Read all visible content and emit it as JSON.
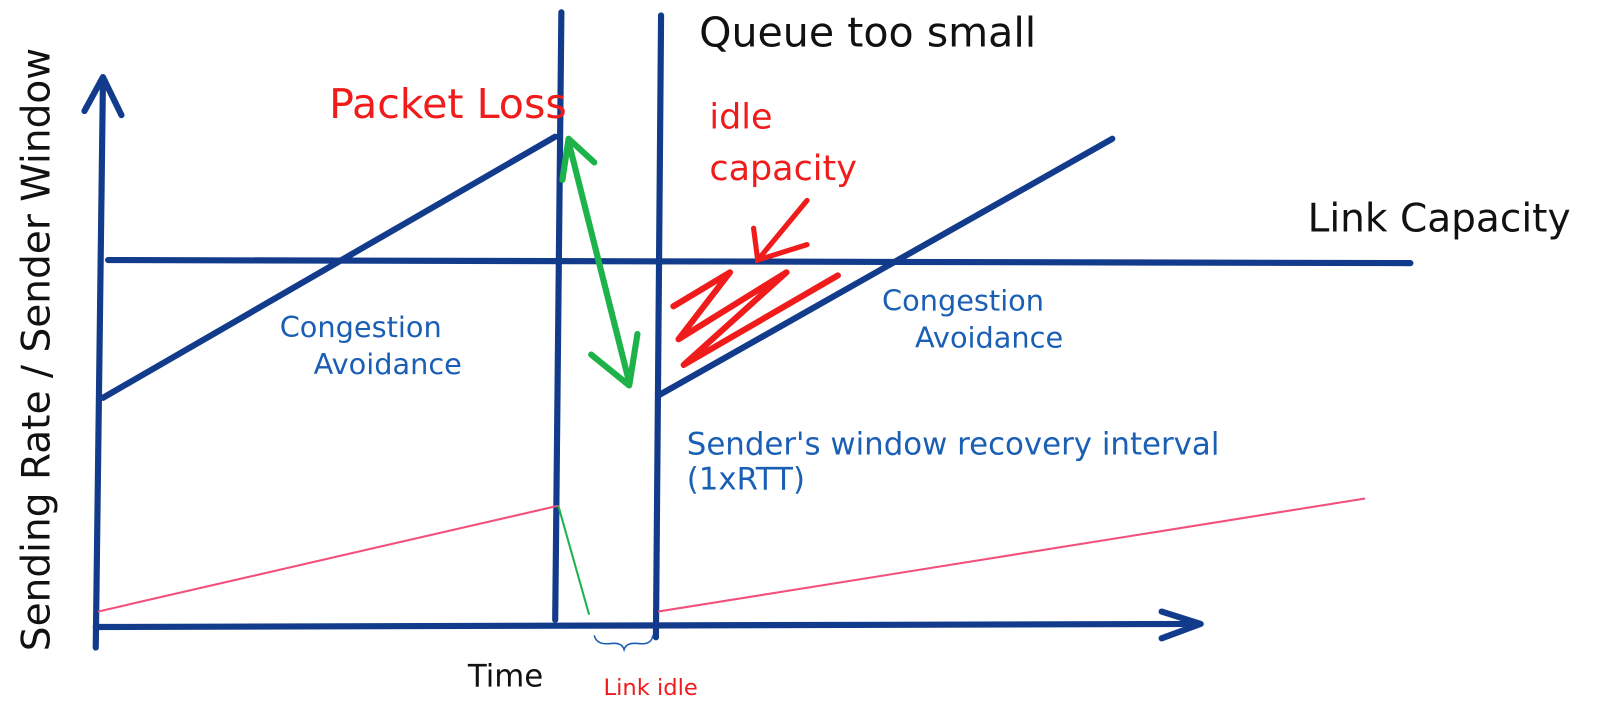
{
  "labels": {
    "queue": "Queue too small",
    "packet_loss": "Packet Loss",
    "idle_capacity": [
      "idle",
      "capacity"
    ],
    "link_capacity": "Link Capacity",
    "congestion_left": [
      "Congestion",
      "Avoidance"
    ],
    "congestion_right": [
      "Congestion",
      "Avoidance"
    ],
    "recovery": [
      "Sender's window recovery interval",
      "(1xRTT)"
    ],
    "y_axis": "Sending Rate / Sender Window",
    "x_axis": "Time",
    "link_idle": "Link idle"
  }
}
